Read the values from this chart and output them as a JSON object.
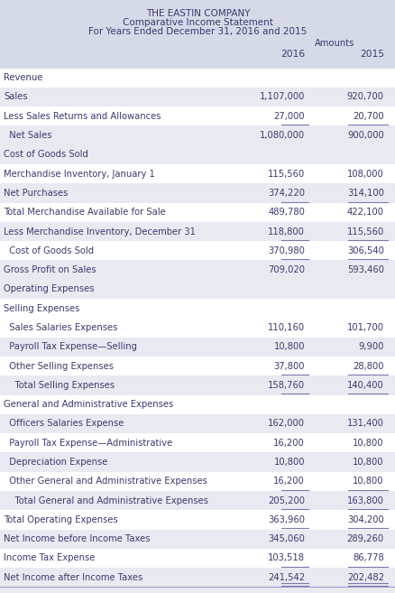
{
  "title1": "THE EASTIN COMPANY",
  "title2": "Comparative Income Statement",
  "title3": "For Years Ended December 31, 2016 and 2015",
  "col_header_label": "Amounts",
  "col2016": "2016",
  "col2015": "2015",
  "header_bg": "#d6d9e8",
  "row_bg_light": "#e8eaf2",
  "row_bg_white": "#ffffff",
  "text_color": "#3a3a6e",
  "rows": [
    {
      "label": "Revenue",
      "v2016": "",
      "v2015": "",
      "bg": "white",
      "line_below": false,
      "double_line_below": false
    },
    {
      "label": "Sales",
      "v2016": "1,107,000",
      "v2015": "920,700",
      "bg": "light",
      "line_below": false,
      "double_line_below": false
    },
    {
      "label": "Less Sales Returns and Allowances",
      "v2016": "27,000",
      "v2015": "20,700",
      "bg": "white",
      "line_below": true,
      "double_line_below": false
    },
    {
      "label": "  Net Sales",
      "v2016": "1,080,000",
      "v2015": "900,000",
      "bg": "light",
      "line_below": false,
      "double_line_below": false
    },
    {
      "label": "Cost of Goods Sold",
      "v2016": "",
      "v2015": "",
      "bg": "light",
      "line_below": false,
      "double_line_below": false
    },
    {
      "label": "Merchandise Inventory, January 1",
      "v2016": "115,560",
      "v2015": "108,000",
      "bg": "white",
      "line_below": false,
      "double_line_below": false
    },
    {
      "label": "Net Purchases",
      "v2016": "374,220",
      "v2015": "314,100",
      "bg": "light",
      "line_below": true,
      "double_line_below": false
    },
    {
      "label": "Total Merchandise Available for Sale",
      "v2016": "489,780",
      "v2015": "422,100",
      "bg": "white",
      "line_below": false,
      "double_line_below": false
    },
    {
      "label": "Less Merchandise Inventory, December 31",
      "v2016": "118,800",
      "v2015": "115,560",
      "bg": "light",
      "line_below": true,
      "double_line_below": false
    },
    {
      "label": "  Cost of Goods Sold",
      "v2016": "370,980",
      "v2015": "306,540",
      "bg": "white",
      "line_below": true,
      "double_line_below": false
    },
    {
      "label": "Gross Profit on Sales",
      "v2016": "709,020",
      "v2015": "593,460",
      "bg": "light",
      "line_below": false,
      "double_line_below": false
    },
    {
      "label": "Operating Expenses",
      "v2016": "",
      "v2015": "",
      "bg": "light",
      "line_below": false,
      "double_line_below": false
    },
    {
      "label": "Selling Expenses",
      "v2016": "",
      "v2015": "",
      "bg": "white",
      "line_below": false,
      "double_line_below": false
    },
    {
      "label": "  Sales Salaries Expenses",
      "v2016": "110,160",
      "v2015": "101,700",
      "bg": "white",
      "line_below": false,
      "double_line_below": false
    },
    {
      "label": "  Payroll Tax Expense—Selling",
      "v2016": "10,800",
      "v2015": "9,900",
      "bg": "light",
      "line_below": false,
      "double_line_below": false
    },
    {
      "label": "  Other Selling Expenses",
      "v2016": "37,800",
      "v2015": "28,800",
      "bg": "white",
      "line_below": true,
      "double_line_below": false
    },
    {
      "label": "    Total Selling Expenses",
      "v2016": "158,760",
      "v2015": "140,400",
      "bg": "light",
      "line_below": true,
      "double_line_below": false
    },
    {
      "label": "General and Administrative Expenses",
      "v2016": "",
      "v2015": "",
      "bg": "white",
      "line_below": false,
      "double_line_below": false
    },
    {
      "label": "  Officers Salaries Expense",
      "v2016": "162,000",
      "v2015": "131,400",
      "bg": "light",
      "line_below": false,
      "double_line_below": false
    },
    {
      "label": "  Payroll Tax Expense—Administrative",
      "v2016": "16,200",
      "v2015": "10,800",
      "bg": "white",
      "line_below": false,
      "double_line_below": false
    },
    {
      "label": "  Depreciation Expense",
      "v2016": "10,800",
      "v2015": "10,800",
      "bg": "light",
      "line_below": false,
      "double_line_below": false
    },
    {
      "label": "  Other General and Administrative Expenses",
      "v2016": "16,200",
      "v2015": "10,800",
      "bg": "white",
      "line_below": true,
      "double_line_below": false
    },
    {
      "label": "    Total General and Administrative Expenses",
      "v2016": "205,200",
      "v2015": "163,800",
      "bg": "light",
      "line_below": true,
      "double_line_below": false
    },
    {
      "label": "Total Operating Expenses",
      "v2016": "363,960",
      "v2015": "304,200",
      "bg": "white",
      "line_below": true,
      "double_line_below": false
    },
    {
      "label": "Net Income before Income Taxes",
      "v2016": "345,060",
      "v2015": "289,260",
      "bg": "light",
      "line_below": false,
      "double_line_below": false
    },
    {
      "label": "Income Tax Expense",
      "v2016": "103,518",
      "v2015": "86,778",
      "bg": "white",
      "line_below": true,
      "double_line_below": false
    },
    {
      "label": "Net Income after Income Taxes",
      "v2016": "241,542",
      "v2015": "202,482",
      "bg": "light",
      "line_below": false,
      "double_line_below": true
    }
  ]
}
